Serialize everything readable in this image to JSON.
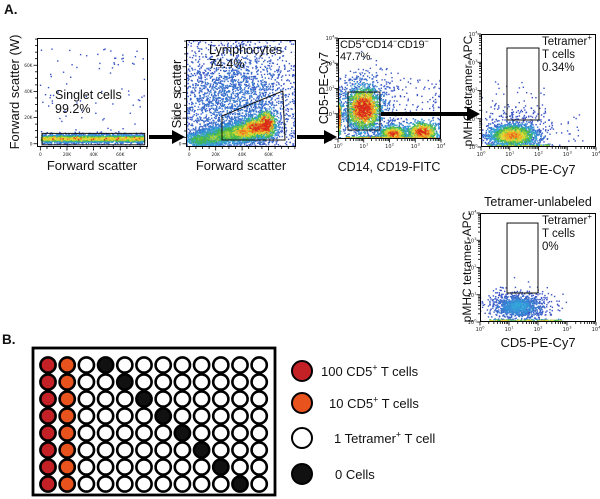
{
  "panel_a_label": "A.",
  "panel_b_label": "B.",
  "chart_data": {
    "flow_plots": [
      {
        "id": "singlets",
        "type": "density-scatter",
        "xlabel": "Forward scatter",
        "ylabel": "Forward scatter (W)",
        "xscale": "linear",
        "yscale": "linear",
        "xticks": [
          "0",
          "20K",
          "40K",
          "60K"
        ],
        "yticks": [
          "0",
          "20K",
          "40K",
          "60K"
        ],
        "gate_label": "Singlet cells\n99.2%",
        "gate_percent": "99.2%",
        "gate": {
          "shape": "rect",
          "x": 0.045,
          "y": 0.02,
          "w": 0.925,
          "h": 0.105
        },
        "populations": [
          {
            "kind": "hband",
            "x0": 0.04,
            "x1": 0.97,
            "cy": 0.075,
            "sy": 0.02,
            "n": 2400,
            "heat": 0.6
          },
          {
            "kind": "hband",
            "x0": 0.06,
            "x1": 0.95,
            "cy": 0.075,
            "sy": 0.022,
            "n": 70,
            "heat": 0.95
          },
          {
            "kind": "uniform",
            "x0": 0.03,
            "x1": 0.97,
            "y0": 0.12,
            "y1": 0.92,
            "n": 80,
            "heat": 0
          }
        ]
      },
      {
        "id": "lymphocytes",
        "type": "density-scatter",
        "xlabel": "Forward scatter",
        "ylabel": "Side scatter",
        "xscale": "linear",
        "yscale": "linear",
        "xticks": [
          "0",
          "20K",
          "40K",
          "60K"
        ],
        "yticks": [
          "0",
          "20K",
          "40K",
          "60K"
        ],
        "gate_label": "Lymphocytes\n74.4%",
        "gate_percent": "74.4%",
        "gate": {
          "shape": "polygon",
          "points": [
            [
              0.327,
              0.065
            ],
            [
              0.327,
              0.29
            ],
            [
              0.88,
              0.523
            ],
            [
              0.9,
              0.065
            ]
          ]
        },
        "populations": [
          {
            "kind": "gauss",
            "cx": 0.45,
            "cy": 0.42,
            "sx": 0.3,
            "sy": 0.28,
            "n": 2200,
            "heat": 0.12
          },
          {
            "kind": "uniform",
            "x0": 0,
            "x1": 1,
            "y0": 0,
            "y1": 1,
            "n": 500,
            "heat": 0
          },
          {
            "kind": "gauss",
            "cx": 0.38,
            "cy": 0.12,
            "sx": 0.11,
            "sy": 0.05,
            "n": 800,
            "heat": 0.5
          },
          {
            "kind": "gauss",
            "cx": 0.52,
            "cy": 0.14,
            "sx": 0.09,
            "sy": 0.05,
            "n": 800,
            "heat": 0.7
          },
          {
            "kind": "gauss",
            "cx": 0.63,
            "cy": 0.18,
            "sx": 0.08,
            "sy": 0.055,
            "n": 800,
            "heat": 0.85
          },
          {
            "kind": "gauss",
            "cx": 0.73,
            "cy": 0.21,
            "sx": 0.05,
            "sy": 0.07,
            "n": 600,
            "heat": 1
          },
          {
            "kind": "gauss",
            "cx": 0.13,
            "cy": 0.07,
            "sx": 0.08,
            "sy": 0.04,
            "n": 450,
            "heat": 0.45
          },
          {
            "kind": "gauss",
            "cx": 0.25,
            "cy": 0.09,
            "sx": 0.08,
            "sy": 0.045,
            "n": 450,
            "heat": 0.5
          }
        ]
      },
      {
        "id": "cd5-cd14-cd19",
        "type": "density-scatter",
        "xlabel": "CD14, CD19-FITC",
        "ylabel": "CD5-PE-Cy7",
        "xscale": "log",
        "yscale": "log",
        "xticks": [
          "10^0",
          "10^1",
          "10^2",
          "10^3",
          "10^4"
        ],
        "yticks": [
          "10^0",
          "10^1",
          "10^2",
          "10^3",
          "10^4"
        ],
        "gate_label": "CD5^+CD14^-CD19^-\n47.7%",
        "gate_percent": "47.7%",
        "gate": {
          "shape": "rect",
          "x": 0.097,
          "y": 0.089,
          "w": 0.31,
          "h": 0.376
        },
        "populations": [
          {
            "kind": "gauss",
            "cx": 0.25,
            "cy": 0.3,
            "sx": 0.09,
            "sy": 0.11,
            "n": 1600,
            "heat": 0.95
          },
          {
            "kind": "gauss",
            "cx": 0.25,
            "cy": 0.3,
            "sx": 0.17,
            "sy": 0.19,
            "n": 600,
            "heat": 0.1
          },
          {
            "kind": "gauss",
            "cx": 0.015,
            "cy": 0.22,
            "sx": 0.008,
            "sy": 0.1,
            "n": 220,
            "heat": 0.9
          },
          {
            "kind": "gauss",
            "cx": 0.54,
            "cy": 0.05,
            "sx": 0.07,
            "sy": 0.045,
            "n": 650,
            "heat": 0.8
          },
          {
            "kind": "gauss",
            "cx": 0.82,
            "cy": 0.07,
            "sx": 0.08,
            "sy": 0.055,
            "n": 750,
            "heat": 0.85
          },
          {
            "kind": "hband",
            "x0": 0.08,
            "x1": 0.95,
            "cy": 0.012,
            "sy": 0.008,
            "n": 320,
            "heat": 0.7
          },
          {
            "kind": "uniform",
            "x0": 0,
            "x1": 1,
            "y0": 0,
            "y1": 0.6,
            "n": 260,
            "heat": 0
          }
        ]
      },
      {
        "id": "tetramer",
        "type": "density-scatter",
        "xlabel": "CD5-PE-Cy7",
        "ylabel": "pMHC tetramer-APC",
        "xscale": "log",
        "yscale": "log",
        "xticks": [
          "10^0",
          "10^1",
          "10^2",
          "10^3",
          "10^4"
        ],
        "yticks": [
          "10^0",
          "10^1",
          "10^2",
          "10^3",
          "10^4"
        ],
        "gate_label": "Tetramer^+\nT cells\n0.34%",
        "gate_percent": "0.34%",
        "gate": {
          "shape": "rect",
          "x": 0.226,
          "y": 0.239,
          "w": 0.278,
          "h": 0.637
        },
        "populations": [
          {
            "kind": "gauss",
            "cx": 0.28,
            "cy": 0.1,
            "sx": 0.105,
            "sy": 0.05,
            "n": 1500,
            "heat": 0.72
          },
          {
            "kind": "gauss",
            "cx": 0.3,
            "cy": 0.13,
            "sx": 0.15,
            "sy": 0.1,
            "n": 420,
            "heat": 0
          },
          {
            "kind": "uniform",
            "x0": 0.1,
            "x1": 0.55,
            "y0": 0.2,
            "y1": 0.6,
            "n": 40,
            "heat": 0
          },
          {
            "kind": "hband",
            "x0": 0.05,
            "x1": 0.6,
            "cy": 0.012,
            "sy": 0.007,
            "n": 140,
            "heat": 0.55
          },
          {
            "kind": "uniform",
            "x0": 0.05,
            "x1": 0.9,
            "y0": 0.05,
            "y1": 0.3,
            "n": 60,
            "heat": 0
          }
        ]
      },
      {
        "id": "tetramer-unlabeled",
        "type": "density-scatter",
        "title": "Tetramer-unlabeled",
        "xlabel": "CD5-PE-Cy7",
        "ylabel": "pMHC tetramer-APC",
        "xscale": "log",
        "yscale": "log",
        "xticks": [
          "10^0",
          "10^1",
          "10^2",
          "10^3",
          "10^4"
        ],
        "yticks": [
          "10^0",
          "10^1",
          "10^2",
          "10^3",
          "10^4"
        ],
        "gate_label": "Tetramer^+\nT cells\n0%",
        "gate_percent": "0%",
        "gate": {
          "shape": "rect",
          "x": 0.233,
          "y": 0.266,
          "w": 0.267,
          "h": 0.642
        },
        "populations": [
          {
            "kind": "gauss",
            "cx": 0.33,
            "cy": 0.14,
            "sx": 0.1,
            "sy": 0.05,
            "n": 850,
            "heat": 0.25
          },
          {
            "kind": "gauss",
            "cx": 0.33,
            "cy": 0.15,
            "sx": 0.16,
            "sy": 0.075,
            "n": 300,
            "heat": 0
          },
          {
            "kind": "hband",
            "x0": 0.08,
            "x1": 0.72,
            "cy": 0.012,
            "sy": 0.007,
            "n": 180,
            "heat": 0.6
          },
          {
            "kind": "uniform",
            "x0": 0.05,
            "x1": 0.75,
            "y0": 0.18,
            "y1": 0.3,
            "n": 40,
            "heat": 0
          }
        ]
      }
    ],
    "plate": {
      "type": "well-plate",
      "rows": 8,
      "cols": 12,
      "wells": [
        "ROWKWWWWWWWW",
        "ROWWKWWWWWWW",
        "ROWWWKWWWWWW",
        "ROWWWWKWWWWW",
        "ROWWWWWKWWWW",
        "ROWWWWWWKWWW",
        "ROWWWWWWWKWW",
        "ROWWWWWWWWKW"
      ],
      "well_colors": {
        "R": "#C42127",
        "O": "#E8521D",
        "W": "#FFFFFF",
        "K": "#111111"
      },
      "legend": [
        {
          "key": "R",
          "color": "#C42127",
          "label": "100 CD5^+ T cells"
        },
        {
          "key": "O",
          "color": "#E8521D",
          "label": "10 CD5^+ T cells"
        },
        {
          "key": "W",
          "color": "#FFFFFF",
          "label": "1 Tetramer^+ T cell"
        },
        {
          "key": "K",
          "color": "#111111",
          "label": "0 Cells"
        }
      ]
    }
  }
}
